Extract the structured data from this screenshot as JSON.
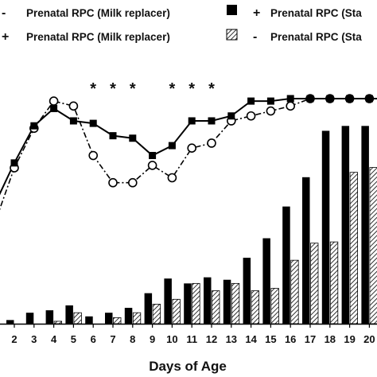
{
  "chart_data": {
    "type": "bar+line",
    "title": "",
    "xlabel": "Days of Age",
    "ylabel": "",
    "categories": [
      "2",
      "3",
      "4",
      "5",
      "6",
      "7",
      "8",
      "9",
      "10",
      "11",
      "12",
      "13",
      "14",
      "15",
      "16",
      "17",
      "18",
      "19",
      "20"
    ],
    "legend": [
      {
        "sym1": "-",
        "text": "Prenatal RPC (Milk replacer)",
        "sym2": "■",
        "sym3": "+",
        "text2": "Prenatal RPC (Sta"
      },
      {
        "sym1": "+",
        "text": "Prenatal RPC (Milk replacer)",
        "sym2": "▨",
        "sym3": "-",
        "text2": "Prenatal RPC (Sta"
      }
    ],
    "bar_ylim": [
      0,
      100
    ],
    "bar_series": [
      {
        "fill": "solid",
        "values": [
          1.5,
          4.5,
          5.5,
          7.5,
          3.0,
          4.5,
          6.5,
          12.5,
          18.5,
          16.5,
          19.0,
          18.0,
          27.0,
          35.0,
          48.0,
          60.0,
          79.0,
          81.0,
          81.0
        ]
      },
      {
        "fill": "hatched",
        "values": [
          0,
          0,
          1.0,
          4.5,
          0,
          2.5,
          4.5,
          8.0,
          10.0,
          16.5,
          13.5,
          16.5,
          13.5,
          14.5,
          26.0,
          33.0,
          33.5,
          62.0,
          64.0
        ]
      }
    ],
    "line_ylim": [
      0,
      100
    ],
    "line_series": [
      {
        "marker": "filled-square",
        "style": "solid",
        "values": [
          65,
          80,
          87,
          82,
          81,
          76,
          75,
          68,
          72,
          82,
          82,
          84,
          90,
          90,
          91,
          91,
          91,
          91,
          91
        ]
      },
      {
        "marker": "open-circle",
        "style": "dash-dot",
        "values": [
          63,
          79,
          90,
          88,
          68,
          57,
          57,
          64,
          59,
          71,
          73,
          82,
          84,
          86,
          88,
          91,
          91,
          91,
          91
        ]
      }
    ],
    "line_left_extension": {
      "solid_start": 50,
      "dashdot_start": 43
    },
    "significance_marker": "*",
    "significant_days": [
      "6",
      "7",
      "8",
      "10",
      "11",
      "12"
    ],
    "grid": false
  }
}
